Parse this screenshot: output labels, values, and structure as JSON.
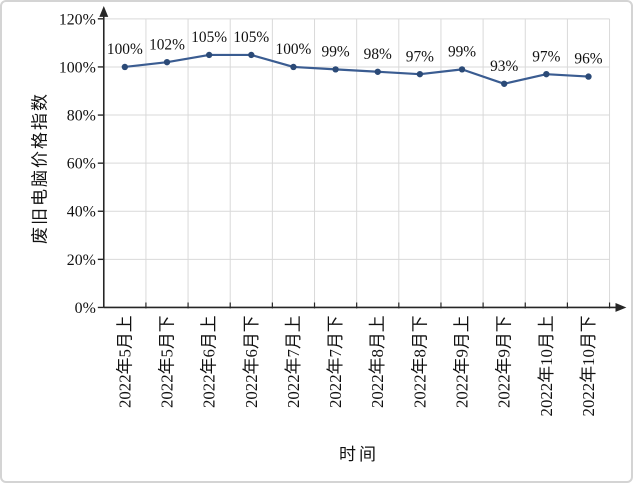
{
  "chart_data": {
    "type": "line",
    "title": "",
    "xlabel": "时间",
    "ylabel": "废旧电脑价格指数",
    "categories": [
      "2022年5月上",
      "2022年5月下",
      "2022年6月上",
      "2022年6月下",
      "2022年7月上",
      "2022年7月下",
      "2022年8月上",
      "2022年8月下",
      "2022年9月上",
      "2022年9月下",
      "2022年10月上",
      "2022年10月下"
    ],
    "series": [
      {
        "name": "废旧电脑价格指数",
        "values": [
          100,
          102,
          105,
          105,
          100,
          99,
          98,
          97,
          99,
          93,
          97,
          96
        ]
      }
    ],
    "data_labels": [
      "100%",
      "102%",
      "105%",
      "105%",
      "100%",
      "99%",
      "98%",
      "97%",
      "99%",
      "93%",
      "97%",
      "96%"
    ],
    "y_ticks": [
      "0%",
      "20%",
      "40%",
      "60%",
      "80%",
      "100%",
      "120%"
    ],
    "ylim": [
      0,
      120
    ],
    "y_tick_step": 20,
    "grid": true,
    "legend": "none",
    "marker": "circle",
    "colors": {
      "line": "#3a5c91",
      "marker": "#2b4a77",
      "grid": "#d9d9d9",
      "axis": "#262626",
      "text": "#111111"
    }
  }
}
